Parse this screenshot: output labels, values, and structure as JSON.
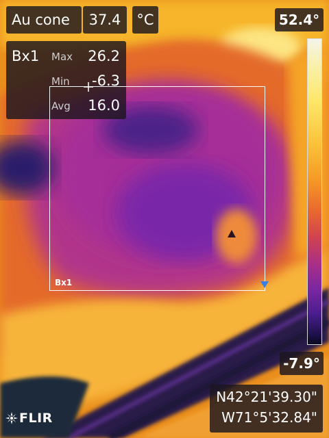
{
  "measurement": {
    "name": "Au cone",
    "value": "37.4",
    "unit": "°C"
  },
  "box": {
    "label": "Bx1",
    "stats": [
      {
        "label": "Max",
        "value": "26.2"
      },
      {
        "label": "Min",
        "value": "-6.3"
      },
      {
        "label": "Avg",
        "value": "16.0"
      }
    ],
    "overlay_label": "Bx1"
  },
  "scale": {
    "max": "52.4°",
    "min": "-7.9°"
  },
  "gps": {
    "lat": "N42°21'39.30\"",
    "lon": "W71°5'32.84\""
  },
  "brand": {
    "logo_text": "FLIR"
  },
  "palette": {
    "hot": "#f4f4ea",
    "warm": "#f59a25",
    "cool": "#7a27a2",
    "cold": "#0b0a20",
    "cold_marker": "#3a7fe6"
  }
}
